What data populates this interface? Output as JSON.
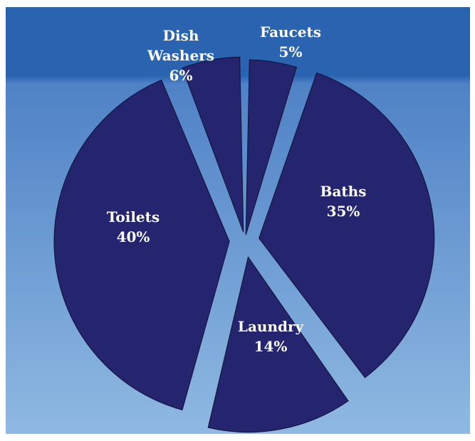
{
  "chart_data": {
    "type": "pie",
    "title": "",
    "slices": [
      {
        "label": "Faucets",
        "value": 5,
        "value_label": "5%"
      },
      {
        "label": "Baths",
        "value": 35,
        "value_label": "35%"
      },
      {
        "label": "Laundry",
        "value": 14,
        "value_label": "14%"
      },
      {
        "label": "Toilets",
        "value": 40,
        "value_label": "40%"
      },
      {
        "label": "Dish Washers",
        "value": 6,
        "value_label": "6%"
      }
    ],
    "exploded": true,
    "legend": "none",
    "colors": {
      "slice_fill": "#24256e",
      "slice_stroke": "#151640",
      "background_top": "#2a63b0",
      "background_bottom": "#8fb9e2",
      "label_text": "#ffffff"
    }
  }
}
